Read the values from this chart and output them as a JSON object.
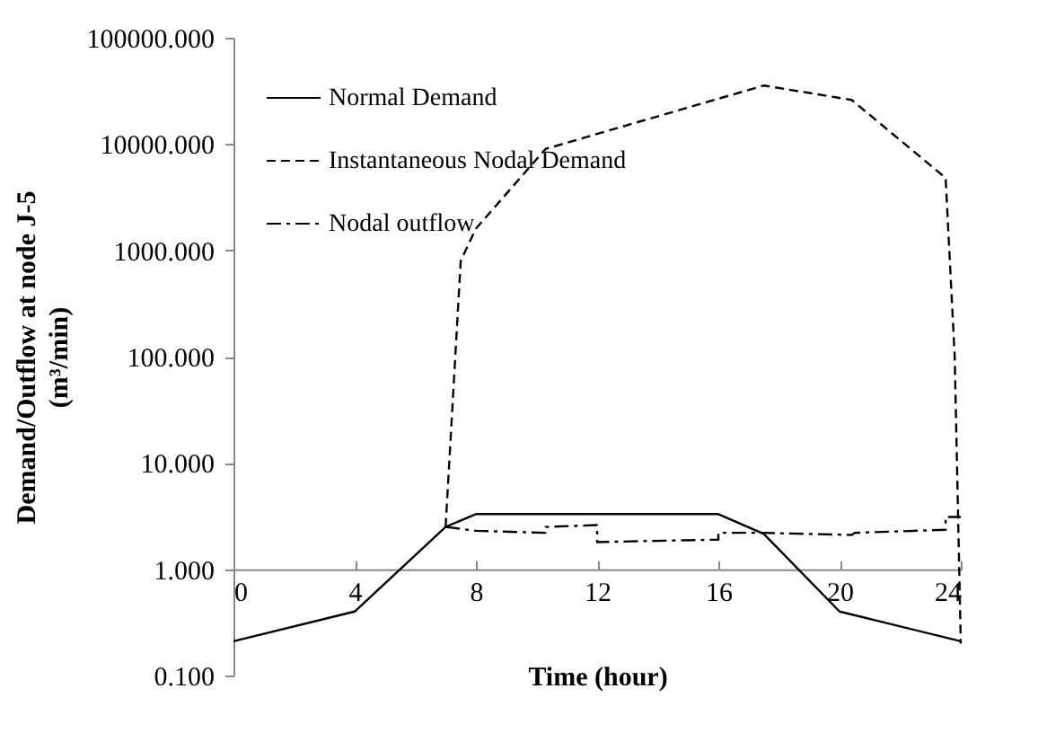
{
  "chart_data": {
    "type": "line",
    "xlabel": "Time (hour)",
    "ylabel": "Demand/Outflow at node J-5\n(m³/min)",
    "log": "y",
    "grid": false,
    "legend": "top left",
    "marker": "none",
    "xlim": [
      0,
      24
    ],
    "xticks": [
      0,
      4,
      8,
      12,
      16,
      20,
      24
    ],
    "ylim": [
      0.1,
      100000
    ],
    "yticks": [
      {
        "value": 0.1,
        "label": "0.100"
      },
      {
        "value": 1,
        "label": "1.000"
      },
      {
        "value": 10,
        "label": "10.000"
      },
      {
        "value": 100,
        "label": "100.000"
      },
      {
        "value": 1000,
        "label": "1000.000"
      },
      {
        "value": 10000,
        "label": "10000.000"
      },
      {
        "value": 100000,
        "label": "100000.000"
      }
    ],
    "series": [
      {
        "name": "Normal Demand",
        "color": "#000000",
        "line_style": "solid",
        "x": [
          0,
          4,
          7,
          8,
          16,
          17.5,
          20,
          24
        ],
        "values": [
          0.21,
          0.4,
          2.5,
          3.3,
          3.3,
          2.15,
          0.4,
          0.21
        ]
      },
      {
        "name": "Instantaneous Nodal Demand",
        "color": "#000000",
        "line_style": "dashed",
        "x": [
          7,
          7.5,
          8,
          10.3,
          17.5,
          20.4,
          23.5,
          23.8,
          24
        ],
        "values": [
          2.5,
          800,
          1600,
          9000,
          35500,
          26000,
          4800,
          100,
          0.2
        ]
      },
      {
        "name": "Nodal outflow",
        "color": "#000000",
        "line_style": "dashdot",
        "x": [
          7,
          8,
          10.3,
          10.3,
          12,
          12,
          16,
          16,
          17.5,
          20.4,
          20.5,
          23.5,
          23.5,
          24
        ],
        "values": [
          2.5,
          2.3,
          2.2,
          2.5,
          2.6,
          1.8,
          1.9,
          2.2,
          2.2,
          2.1,
          2.2,
          2.35,
          3.1,
          3.1
        ]
      }
    ]
  }
}
